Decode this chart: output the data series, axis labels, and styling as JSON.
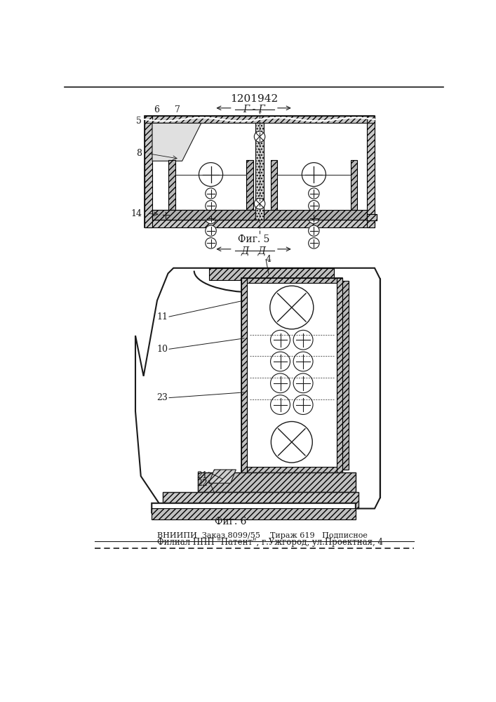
{
  "patent_number": "1201942",
  "fig5_label": "Фиг. 5",
  "fig6_label": "Фиг. 6",
  "section_gg": "Г - Г",
  "section_dd": "Д - Д",
  "footer_line1": "ВНИИПИ  Заказ 8099/55    Тираж 619   Подписное",
  "footer_line2": "Филиал ППП \"Патент\", г.Ужгород, ул.Проектная, 4",
  "bg_color": "#ffffff",
  "line_color": "#1a1a1a"
}
